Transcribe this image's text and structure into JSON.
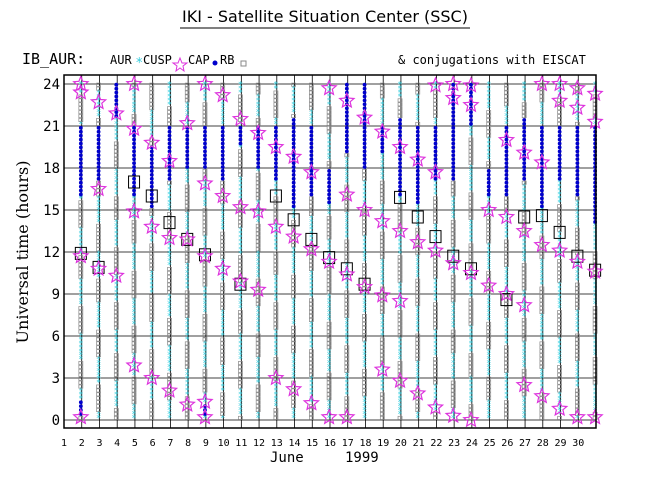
{
  "header": {
    "title": "IKI - Satellite Situation Center (SSC)",
    "satellite": "IB_AUR:",
    "conjugations": "& conjugations with EISCAT"
  },
  "legend": [
    {
      "label": "AUR",
      "marker": "asterisk",
      "color": "#33ccdd"
    },
    {
      "label": "CUSP",
      "marker": "star",
      "color": "#dd33dd"
    },
    {
      "label": "CAP",
      "marker": "dot",
      "color": "#0000cc"
    },
    {
      "label": "RB",
      "marker": "square",
      "color": "#888888"
    }
  ],
  "chart_data": {
    "type": "scatter",
    "xlabel": "",
    "ylabel": "Universal time (hours)",
    "x_month_label": "June",
    "x_year_label": "1999",
    "x_ticks": [
      "1",
      "2",
      "3",
      "4",
      "5",
      "6",
      "7",
      "8",
      "9",
      "10",
      "11",
      "12",
      "13",
      "14",
      "15",
      "16",
      "17",
      "18",
      "19",
      "20",
      "21",
      "22",
      "23",
      "24",
      "25",
      "26",
      "27",
      "28",
      "29",
      "30"
    ],
    "y_ticks": [
      "0",
      "3",
      "6",
      "9",
      "12",
      "15",
      "18",
      "21",
      "24"
    ],
    "xlim": [
      1,
      31
    ],
    "ylim": [
      0,
      24
    ],
    "grid": true,
    "colors": {
      "aur": "#33ccdd",
      "cusp": "#dd33dd",
      "cap": "#0000cc",
      "rb": "#888888"
    },
    "tracks": [
      {
        "day": 1.95,
        "cusp": [
          0.2,
          11.7,
          23.4,
          24.0
        ],
        "conj": [
          11.9
        ],
        "cap_ranges": [
          [
            0.3,
            1.5
          ],
          [
            16.0,
            21.0
          ]
        ]
      },
      {
        "day": 2.95,
        "cusp": [
          10.8,
          16.5,
          22.7
        ],
        "conj": [
          10.9
        ],
        "cap_ranges": [
          [
            17.2,
            21.0
          ]
        ]
      },
      {
        "day": 3.95,
        "cusp": [
          10.3,
          21.9
        ],
        "conj": [],
        "cap_ranges": [
          [
            21.5,
            24.0
          ]
        ]
      },
      {
        "day": 4.95,
        "cusp": [
          3.9,
          14.9,
          20.8,
          24.0
        ],
        "conj": [
          17.0
        ],
        "cap_ranges": [
          [
            16.0,
            21.0
          ]
        ]
      },
      {
        "day": 5.95,
        "cusp": [
          3.0,
          13.8,
          19.8
        ],
        "conj": [
          16.0
        ],
        "cap_ranges": [
          [
            15.0,
            19.5
          ]
        ]
      },
      {
        "day": 6.95,
        "cusp": [
          2.1,
          13.0,
          18.5
        ],
        "conj": [
          14.1
        ],
        "cap_ranges": [
          [
            17.0,
            21.0
          ]
        ]
      },
      {
        "day": 7.95,
        "cusp": [
          1.1,
          12.9,
          21.2
        ],
        "conj": [
          12.9
        ],
        "cap_ranges": [
          [
            18.0,
            21.0
          ]
        ]
      },
      {
        "day": 8.95,
        "cusp": [
          0.2,
          1.3,
          11.7,
          16.9,
          24.0
        ],
        "conj": [
          11.8
        ],
        "cap_ranges": [
          [
            0.2,
            1.2
          ],
          [
            18.0,
            21.0
          ]
        ]
      },
      {
        "day": 9.95,
        "cusp": [
          10.8,
          16.0,
          23.2
        ],
        "conj": [],
        "cap_ranges": [
          [
            17.0,
            21.0
          ]
        ]
      },
      {
        "day": 10.95,
        "cusp": [
          9.9,
          15.2,
          21.5
        ],
        "conj": [
          9.7
        ],
        "cap_ranges": [
          [
            19.5,
            21.0
          ]
        ]
      },
      {
        "day": 11.95,
        "cusp": [
          9.3,
          14.9,
          20.5
        ],
        "conj": [],
        "cap_ranges": [
          [
            18.0,
            21.0
          ]
        ]
      },
      {
        "day": 12.95,
        "cusp": [
          3.0,
          13.8,
          19.5
        ],
        "conj": [
          16.0
        ],
        "cap_ranges": [
          [
            17.0,
            21.0
          ]
        ]
      },
      {
        "day": 13.95,
        "cusp": [
          2.2,
          13.1,
          18.8
        ],
        "conj": [
          14.3
        ],
        "cap_ranges": [
          [
            15.0,
            21.5
          ]
        ]
      },
      {
        "day": 14.95,
        "cusp": [
          1.2,
          12.2,
          17.7
        ],
        "conj": [
          12.9
        ],
        "cap_ranges": [
          [
            16.0,
            21.0
          ]
        ]
      },
      {
        "day": 15.95,
        "cusp": [
          0.2,
          11.3,
          23.7
        ],
        "conj": [
          11.6
        ],
        "cap_ranges": [
          [
            15.5,
            18.0
          ]
        ]
      },
      {
        "day": 16.95,
        "cusp": [
          0.2,
          10.4,
          16.1,
          22.8
        ],
        "conj": [
          10.8
        ],
        "cap_ranges": [
          [
            19.0,
            24.0
          ]
        ]
      },
      {
        "day": 17.95,
        "cusp": [
          9.5,
          15.0,
          21.6
        ],
        "conj": [
          9.7
        ],
        "cap_ranges": [
          [
            18.0,
            24.0
          ]
        ]
      },
      {
        "day": 18.95,
        "cusp": [
          3.6,
          8.9,
          14.2,
          20.6
        ],
        "conj": [],
        "cap_ranges": [
          [
            19.0,
            21.0
          ]
        ]
      },
      {
        "day": 19.95,
        "cusp": [
          2.8,
          8.5,
          13.5,
          19.5
        ],
        "conj": [
          15.9
        ],
        "cap_ranges": [
          [
            16.0,
            21.5
          ]
        ]
      },
      {
        "day": 20.95,
        "cusp": [
          1.9,
          12.7,
          18.6
        ],
        "conj": [
          14.5
        ],
        "cap_ranges": [
          [
            15.5,
            21.0
          ]
        ]
      },
      {
        "day": 21.95,
        "cusp": [
          0.9,
          12.1,
          17.7,
          23.9
        ],
        "conj": [
          13.1
        ],
        "cap_ranges": [
          [
            17.0,
            21.0
          ]
        ]
      },
      {
        "day": 22.95,
        "cusp": [
          0.3,
          11.2,
          23.0,
          24.0
        ],
        "conj": [
          11.7
        ],
        "cap_ranges": [
          [
            17.0,
            24.0
          ]
        ]
      },
      {
        "day": 23.95,
        "cusp": [
          0.0,
          10.5,
          22.5,
          23.9
        ],
        "conj": [
          10.8
        ],
        "cap_ranges": [
          [
            21.0,
            24.0
          ]
        ]
      },
      {
        "day": 24.95,
        "cusp": [
          9.6,
          15.0
        ],
        "conj": [],
        "cap_ranges": [
          [
            16.0,
            18.0
          ]
        ]
      },
      {
        "day": 25.95,
        "cusp": [
          9.0,
          14.5,
          20.0
        ],
        "conj": [
          8.6
        ],
        "cap_ranges": [
          [
            16.0,
            21.0
          ]
        ]
      },
      {
        "day": 26.95,
        "cusp": [
          2.5,
          8.2,
          13.5,
          19.1
        ],
        "conj": [
          14.5
        ],
        "cap_ranges": [
          [
            17.0,
            21.5
          ]
        ]
      },
      {
        "day": 27.95,
        "cusp": [
          1.7,
          12.5,
          18.4,
          24.0
        ],
        "conj": [
          14.6
        ],
        "cap_ranges": [
          [
            15.0,
            21.0
          ]
        ]
      },
      {
        "day": 28.95,
        "cusp": [
          0.8,
          12.1,
          22.8,
          24.0
        ],
        "conj": [
          13.4
        ],
        "cap_ranges": [
          [
            17.0,
            21.0
          ]
        ]
      },
      {
        "day": 29.95,
        "cusp": [
          0.2,
          11.3,
          22.3,
          23.7
        ],
        "conj": [
          11.7
        ],
        "cap_ranges": [
          [
            16.0,
            21.0
          ]
        ]
      },
      {
        "day": 30.95,
        "cusp": [
          0.2,
          10.6,
          21.3,
          23.3
        ],
        "conj": [
          10.7
        ],
        "cap_ranges": [
          [
            14.0,
            21.0
          ]
        ]
      }
    ]
  }
}
